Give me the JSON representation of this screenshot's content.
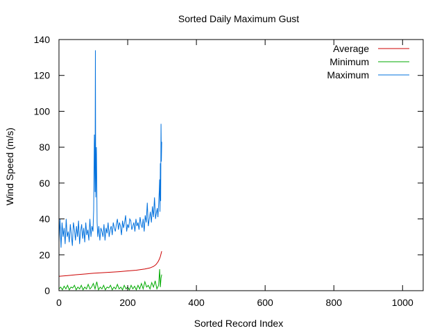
{
  "chart_data": {
    "type": "line",
    "title": "Sorted Daily Maximum Gust",
    "xlabel": "Sorted Record Index",
    "ylabel": "Wind Speed (m/s)",
    "xlim": [
      0,
      1060
    ],
    "ylim": [
      0,
      140
    ],
    "x_ticks": [
      0,
      200,
      400,
      600,
      800,
      1000
    ],
    "y_ticks": [
      0,
      20,
      40,
      60,
      80,
      100,
      120,
      140
    ],
    "grid": false,
    "legend_position": "top-right",
    "series": [
      {
        "name": "Average",
        "color": "#cc0000",
        "x": [
          0,
          25,
          50,
          75,
          100,
          125,
          150,
          175,
          200,
          225,
          250,
          265,
          275,
          282,
          288,
          292,
          295,
          297,
          299
        ],
        "y": [
          8.0,
          8.4,
          8.9,
          9.3,
          9.7,
          10.0,
          10.3,
          10.6,
          11.0,
          11.4,
          12.1,
          12.7,
          13.5,
          14.5,
          16.0,
          17.5,
          19.0,
          20.5,
          22.0
        ]
      },
      {
        "name": "Minimum",
        "color": "#00aa00",
        "x": [
          0,
          5,
          10,
          15,
          20,
          25,
          30,
          35,
          40,
          45,
          50,
          55,
          60,
          65,
          70,
          75,
          80,
          85,
          90,
          95,
          100,
          105,
          110,
          115,
          120,
          125,
          130,
          135,
          140,
          145,
          150,
          155,
          160,
          165,
          170,
          175,
          180,
          185,
          190,
          195,
          200,
          205,
          210,
          215,
          220,
          225,
          230,
          235,
          240,
          245,
          250,
          255,
          260,
          265,
          270,
          275,
          280,
          285,
          290,
          293,
          295,
          297,
          299
        ],
        "y": [
          1,
          2,
          0.5,
          2.5,
          1,
          3,
          0.5,
          2,
          1.5,
          3,
          0.5,
          2,
          1,
          3,
          0.5,
          2,
          1,
          3.5,
          1,
          2,
          4,
          1,
          5,
          0.5,
          2,
          1,
          3,
          0.5,
          2,
          1.5,
          3,
          0.5,
          2,
          1,
          3.5,
          1,
          2,
          0.5,
          3,
          1,
          2,
          0.5,
          3,
          1,
          2.5,
          0.5,
          3,
          1,
          4,
          1,
          5,
          2,
          3,
          1,
          4.5,
          2,
          5.5,
          1,
          3,
          12,
          2,
          7,
          9
        ]
      },
      {
        "name": "Maximum",
        "color": "#0070dd",
        "x": [
          0,
          3,
          6,
          9,
          12,
          15,
          18,
          21,
          24,
          27,
          30,
          33,
          36,
          39,
          42,
          45,
          48,
          51,
          54,
          57,
          60,
          63,
          66,
          69,
          72,
          75,
          78,
          81,
          84,
          87,
          90,
          93,
          96,
          99,
          101,
          103,
          105,
          106,
          107,
          109,
          111,
          113,
          116,
          119,
          122,
          125,
          128,
          131,
          134,
          137,
          140,
          143,
          146,
          149,
          152,
          155,
          158,
          161,
          164,
          167,
          170,
          173,
          176,
          179,
          182,
          185,
          188,
          191,
          194,
          197,
          200,
          203,
          206,
          209,
          212,
          215,
          218,
          221,
          224,
          227,
          230,
          233,
          236,
          239,
          242,
          245,
          248,
          251,
          254,
          257,
          260,
          263,
          266,
          269,
          272,
          275,
          278,
          281,
          284,
          286,
          288,
          290,
          292,
          293,
          294,
          295,
          296,
          297,
          298,
          299
        ],
        "y": [
          27,
          40,
          24,
          38,
          30,
          35,
          26,
          40,
          30,
          33,
          27,
          37,
          31,
          25,
          38,
          34,
          28,
          36,
          30,
          39,
          26,
          33,
          37,
          29,
          35,
          27,
          38,
          31,
          34,
          28,
          40,
          30,
          36,
          33,
          45,
          87,
          55,
          134,
          52,
          80,
          38,
          30,
          36,
          28,
          35,
          33,
          30,
          37,
          28,
          35,
          32,
          38,
          30,
          34,
          36,
          31,
          38,
          35,
          33,
          37,
          40,
          34,
          38,
          36,
          31,
          39,
          35,
          38,
          42,
          33,
          37,
          35,
          40,
          39,
          34,
          36,
          38,
          33,
          40,
          36,
          38,
          34,
          41,
          37,
          35,
          40,
          33,
          42,
          38,
          49,
          36,
          40,
          44,
          38,
          47,
          41,
          52,
          40,
          44,
          46,
          41,
          48,
          56,
          62,
          44,
          71,
          50,
          93,
          72,
          83
        ]
      }
    ]
  }
}
